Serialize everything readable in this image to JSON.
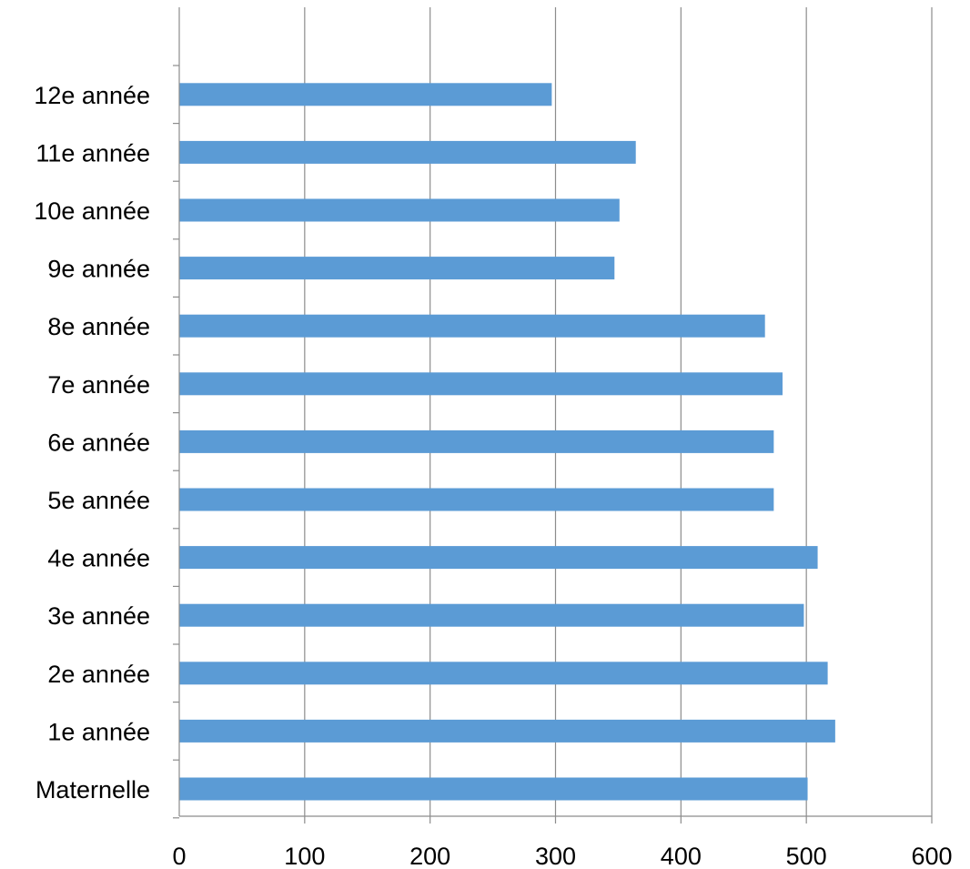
{
  "chart_data": {
    "type": "bar",
    "orientation": "horizontal",
    "categories": [
      "Maternelle",
      "1e année",
      "2e année",
      "3e année",
      "4e année",
      "5e année",
      "6e année",
      "7e année",
      "8e année",
      "9e année",
      "10e année",
      "11e année",
      "12e année"
    ],
    "values": [
      501,
      523,
      517,
      498,
      509,
      474,
      474,
      481,
      467,
      347,
      351,
      364,
      297
    ],
    "xlim": [
      0,
      600
    ],
    "xticks": [
      0,
      100,
      200,
      300,
      400,
      500,
      600
    ],
    "grid": "vertical",
    "bar_color": "#5B9BD5",
    "title": "",
    "xlabel": "",
    "ylabel": ""
  }
}
